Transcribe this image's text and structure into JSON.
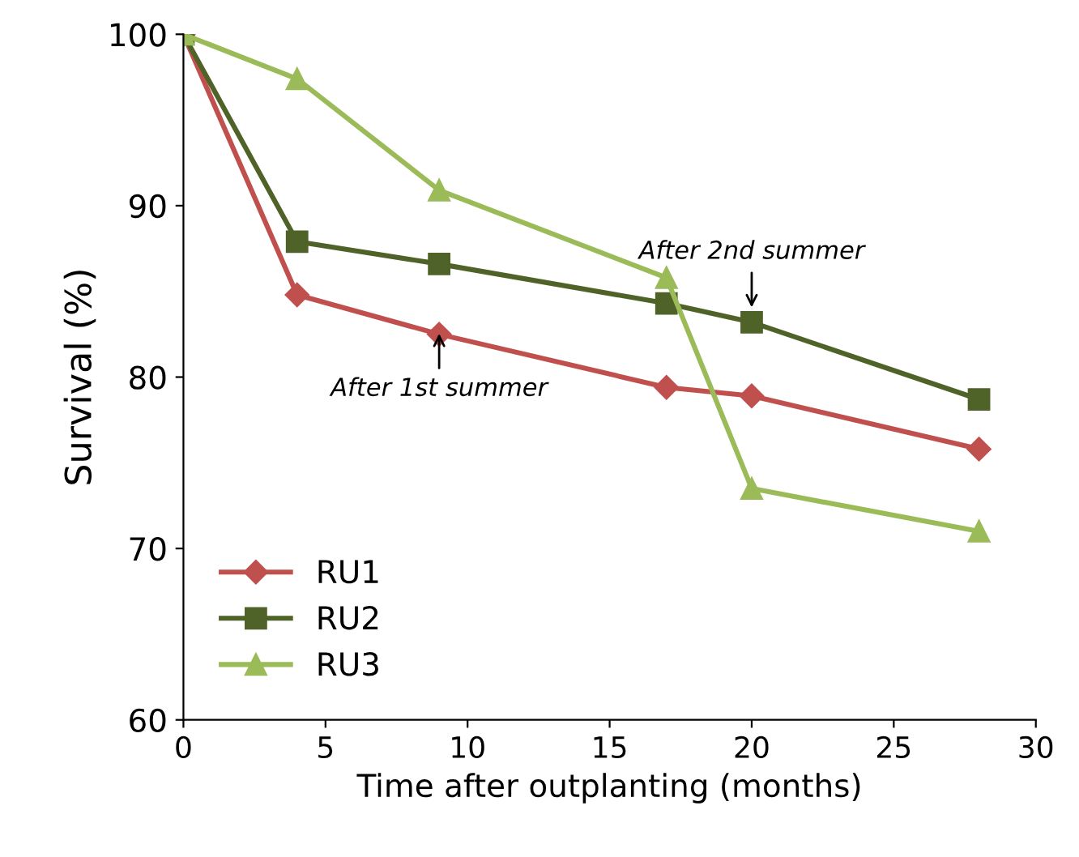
{
  "chart_data": {
    "type": "line",
    "xlabel": "Time after outplanting (months)",
    "ylabel": "Survival (%)",
    "x": [
      0,
      4,
      9,
      17,
      20,
      28
    ],
    "series": [
      {
        "name": "RU1",
        "color": "#c0504d",
        "marker": "diamond",
        "values": [
          100,
          84.8,
          82.5,
          79.4,
          78.9,
          75.8
        ]
      },
      {
        "name": "RU2",
        "color": "#4f6228",
        "marker": "square",
        "values": [
          100,
          87.9,
          86.6,
          84.3,
          83.2,
          78.7
        ]
      },
      {
        "name": "RU3",
        "color": "#9bbb59",
        "marker": "triangle",
        "values": [
          100,
          97.4,
          90.9,
          85.8,
          73.5,
          71.0
        ]
      }
    ],
    "xlim": [
      0,
      30
    ],
    "xticks": [
      0,
      5,
      10,
      15,
      20,
      25,
      30
    ],
    "ylim": [
      60,
      100
    ],
    "yticks": [
      60,
      70,
      80,
      90,
      100
    ],
    "grid": false,
    "legend": "bottom left",
    "line_style": "solid",
    "annotations": [
      {
        "text": "After 1st summer",
        "x": 9,
        "y": 82.8
      },
      {
        "text": "After 2nd summer",
        "x": 20,
        "y": 83.8
      }
    ]
  }
}
